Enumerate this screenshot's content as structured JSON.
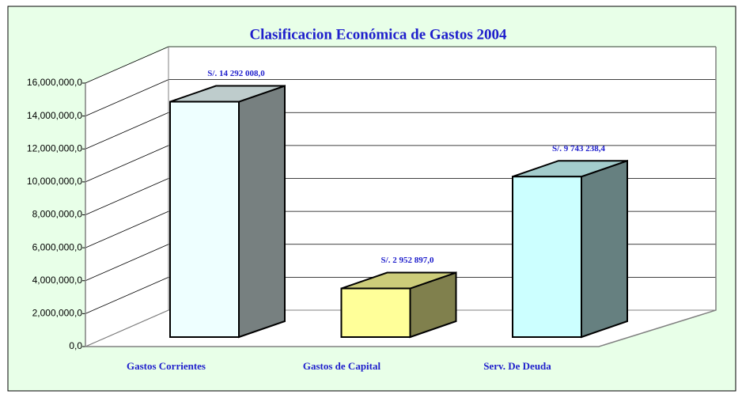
{
  "chart_data": {
    "type": "bar3d",
    "title": "Clasificacion Económica de Gastos 2004",
    "categories": [
      "Gastos Corrientes",
      "Gastos de Capital",
      "Serv. De Deuda"
    ],
    "values": [
      14292008.0,
      2952897.0,
      9743238.4
    ],
    "value_labels": [
      "S/. 14 292 008,0",
      "S/. 2 952 897,0",
      "S/. 9 743 238,4"
    ],
    "colors": [
      "#eeffff",
      "#ffff99",
      "#ccffff"
    ],
    "ylim": [
      0,
      16000000
    ],
    "yticks": [
      {
        "value": 0,
        "label": "0,0"
      },
      {
        "value": 2000000,
        "label": "2,000,000,0"
      },
      {
        "value": 4000000,
        "label": "4,000,000,0"
      },
      {
        "value": 6000000,
        "label": "6,000,000,0"
      },
      {
        "value": 8000000,
        "label": "8,000,000,0"
      },
      {
        "value": 10000000,
        "label": "10,000,000,0"
      },
      {
        "value": 12000000,
        "label": "12,000,000,0"
      },
      {
        "value": 14000000,
        "label": "14,000,000,0"
      },
      {
        "value": 16000000,
        "label": "16,000,000,0"
      }
    ],
    "grid": true
  }
}
